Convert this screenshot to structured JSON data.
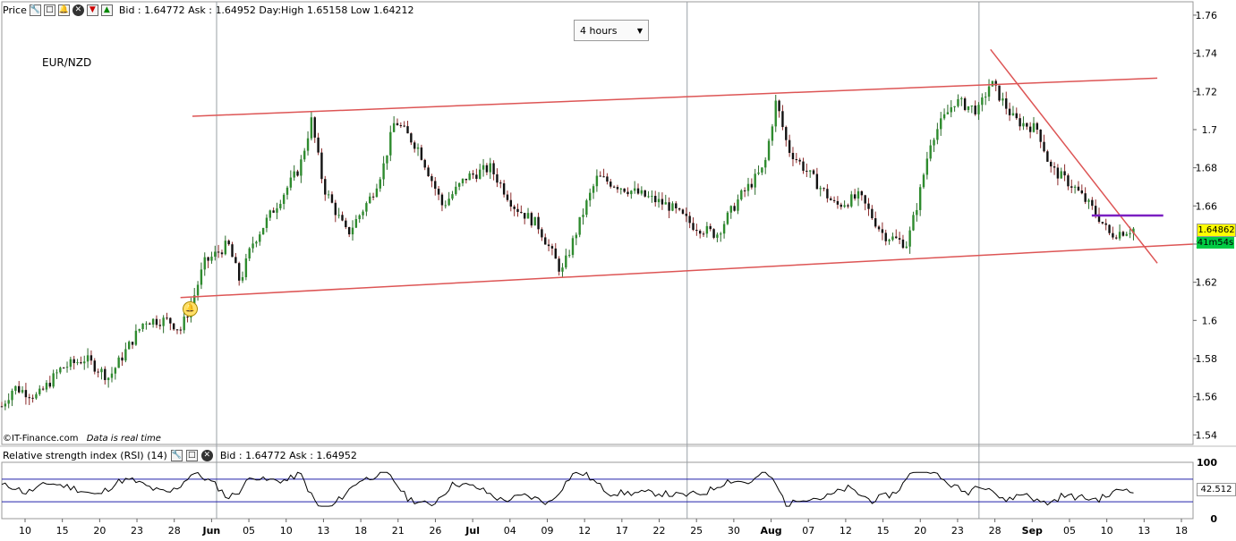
{
  "toolbar": {
    "label": "Price",
    "quote": "Bid : 1.64772 Ask : 1.64952 Day:High 1.65158 Low 1.64212",
    "icons": [
      "wrench-icon",
      "maximize-icon",
      "bell-icon",
      "close-icon",
      "sell-arrow-icon",
      "buy-arrow-icon"
    ]
  },
  "timeframe": {
    "selected": "4 hours"
  },
  "symbol": "EUR/NZD",
  "footer": {
    "source": "©IT-Finance.com",
    "realtime": "Data is real time"
  },
  "last_price": {
    "value": "1.64862",
    "countdown": "41m54s",
    "color": "#ffff00",
    "countdown_color": "#00cc44"
  },
  "rsi": {
    "title": "Relative strength index (RSI) (14)",
    "quote": "Bid : 1.64772 Ask : 1.64952",
    "value": "42.512",
    "upper": 70,
    "lower": 30,
    "ticks": [
      "100",
      "0"
    ]
  },
  "chart_data": {
    "type": "candlestick",
    "title": "EUR/NZD",
    "price_ticks": [
      "1.76",
      "1.74",
      "1.72",
      "1.7",
      "1.68",
      "1.66",
      "1.64",
      "1.62",
      "1.6",
      "1.58",
      "1.56",
      "1.54"
    ],
    "ylim": [
      1.535,
      1.767
    ],
    "x_ticks": [
      "10",
      "15",
      "20",
      "23",
      "28",
      "Jun",
      "05",
      "10",
      "13",
      "18",
      "21",
      "26",
      "Jul",
      "04",
      "09",
      "12",
      "17",
      "22",
      "25",
      "30",
      "Aug",
      "07",
      "12",
      "15",
      "20",
      "23",
      "28",
      "Sep",
      "05",
      "10",
      "13",
      "18"
    ],
    "month_labels": [
      "Jun",
      "Jul",
      "Aug",
      "Sep"
    ],
    "price_path": [
      [
        0,
        1.555
      ],
      [
        0.01,
        1.565
      ],
      [
        0.03,
        1.56
      ],
      [
        0.05,
        1.575
      ],
      [
        0.07,
        1.58
      ],
      [
        0.09,
        1.57
      ],
      [
        0.11,
        1.59
      ],
      [
        0.12,
        1.6
      ],
      [
        0.14,
        1.6
      ],
      [
        0.15,
        1.595
      ],
      [
        0.16,
        1.61
      ],
      [
        0.17,
        1.63
      ],
      [
        0.19,
        1.64
      ],
      [
        0.2,
        1.62
      ],
      [
        0.21,
        1.64
      ],
      [
        0.23,
        1.66
      ],
      [
        0.25,
        1.68
      ],
      [
        0.26,
        1.705
      ],
      [
        0.27,
        1.67
      ],
      [
        0.29,
        1.645
      ],
      [
        0.31,
        1.665
      ],
      [
        0.32,
        1.68
      ],
      [
        0.33,
        1.705
      ],
      [
        0.35,
        1.69
      ],
      [
        0.37,
        1.66
      ],
      [
        0.39,
        1.675
      ],
      [
        0.41,
        1.68
      ],
      [
        0.43,
        1.66
      ],
      [
        0.45,
        1.65
      ],
      [
        0.47,
        1.625
      ],
      [
        0.49,
        1.66
      ],
      [
        0.5,
        1.675
      ],
      [
        0.52,
        1.67
      ],
      [
        0.54,
        1.665
      ],
      [
        0.56,
        1.66
      ],
      [
        0.58,
        1.65
      ],
      [
        0.6,
        1.645
      ],
      [
        0.61,
        1.655
      ],
      [
        0.62,
        1.665
      ],
      [
        0.64,
        1.68
      ],
      [
        0.65,
        1.715
      ],
      [
        0.66,
        1.69
      ],
      [
        0.68,
        1.675
      ],
      [
        0.7,
        1.66
      ],
      [
        0.72,
        1.665
      ],
      [
        0.74,
        1.645
      ],
      [
        0.76,
        1.64
      ],
      [
        0.77,
        1.665
      ],
      [
        0.78,
        1.695
      ],
      [
        0.8,
        1.715
      ],
      [
        0.82,
        1.71
      ],
      [
        0.83,
        1.725
      ],
      [
        0.85,
        1.705
      ],
      [
        0.87,
        1.7
      ],
      [
        0.88,
        1.68
      ],
      [
        0.9,
        1.67
      ],
      [
        0.92,
        1.655
      ],
      [
        0.93,
        1.645
      ],
      [
        0.95,
        1.648
      ]
    ],
    "trendlines": [
      {
        "name": "upper channel",
        "color": "#dd5555",
        "points": [
          [
            0.16,
            1.707
          ],
          [
            0.97,
            1.727
          ]
        ]
      },
      {
        "name": "lower channel",
        "color": "#dd5555",
        "points": [
          [
            0.15,
            1.612
          ],
          [
            1.0,
            1.64
          ]
        ]
      },
      {
        "name": "descending",
        "color": "#dd5555",
        "points": [
          [
            0.83,
            1.742
          ],
          [
            0.97,
            1.63
          ]
        ]
      },
      {
        "name": "resistance",
        "color": "#7a1fc1",
        "points": [
          [
            0.915,
            1.655
          ],
          [
            0.975,
            1.655
          ]
        ]
      }
    ],
    "month_separators": [
      0.0,
      0.395,
      0.64,
      0.868
    ],
    "grid": true
  }
}
